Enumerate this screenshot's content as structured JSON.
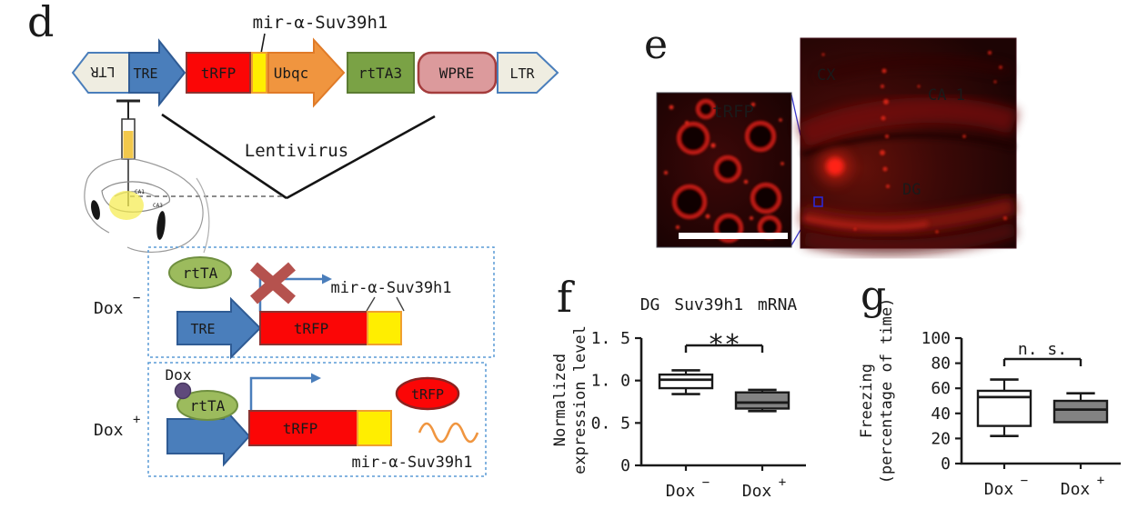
{
  "figure": {
    "colors": {
      "construct_blue": "#4a7ebb",
      "construct_blue_dark": "#2f5b94",
      "construct_red": "#fb0606",
      "construct_yellow": "#ffee00",
      "construct_orange": "#f0953f",
      "construct_green": "#7aa245",
      "construct_pink": "#dc9a9c",
      "ltr_fill": "#efede1",
      "rtta_green": "#9cbb5d",
      "cross_red": "#b5524e",
      "dox_purple": "#5f4a7b",
      "dashed_box_blue": "#5b9bd5",
      "box_gray": "#828282",
      "fluorescence_red": "#e02515"
    },
    "panel_d": {
      "label": "d",
      "construct": {
        "mir_label": "mir-α-Suv39h1",
        "ltr_left": "LTR",
        "tre": "TRE",
        "trfp": "tRFP",
        "ubqc": "Ubqc",
        "rtta3": "rtTA3",
        "wpre": "WPRE",
        "ltr_right": "LTR"
      },
      "lentivirus": "Lentivirus",
      "brain": {
        "ca1": "CA1",
        "ca3": "CA3"
      },
      "dox_minus": {
        "row_label": "Dox",
        "row_sup": "−",
        "rtta": "rtTA",
        "mir": "mir-α-Suv39h1",
        "tre": "TRE",
        "trfp": "tRFP"
      },
      "dox_plus": {
        "row_label": "Dox",
        "row_sup": "+",
        "dox": "Dox",
        "rtta": "rtTA",
        "trfp": "tRFP",
        "trfp_protein": "tRFP",
        "mir": "mir-α-Suv39h1"
      }
    },
    "panel_e": {
      "label": "e",
      "inset_label": "tRFP",
      "cx": "CX",
      "ca1": "CA 1",
      "dg": "DG"
    },
    "panel_f": {
      "label": "f"
    },
    "panel_g": {
      "label": "g"
    }
  },
  "chart_data": [
    {
      "id": "f",
      "type": "box",
      "title": "DG Suv39h1 mRNA",
      "ylabel": [
        "Normalized",
        "expression level"
      ],
      "xlabel": "",
      "ylim": [
        0,
        1.5
      ],
      "grid": false,
      "yticks": [
        {
          "value": 0,
          "label": "0"
        },
        {
          "value": 0.5,
          "label": "0. 5"
        },
        {
          "value": 1.0,
          "label": "1. 0"
        },
        {
          "value": 1.5,
          "label": "1. 5"
        }
      ],
      "categories": [
        {
          "label": "Dox",
          "sup": "−"
        },
        {
          "label": "Dox",
          "sup": "+"
        }
      ],
      "boxes": [
        {
          "whisker_low": 0.84,
          "q1": 0.91,
          "median": 1.01,
          "q3": 1.07,
          "whisker_high": 1.12,
          "fill": "#ffffff"
        },
        {
          "whisker_low": 0.64,
          "q1": 0.67,
          "median": 0.74,
          "q3": 0.86,
          "whisker_high": 0.89,
          "fill": "#828282"
        }
      ],
      "significance": "**"
    },
    {
      "id": "g",
      "type": "box",
      "title": "",
      "ylabel": [
        "Freezing",
        "(percentage of time)"
      ],
      "xlabel": "",
      "ylim": [
        0,
        100
      ],
      "grid": false,
      "yticks": [
        {
          "value": 0,
          "label": "0"
        },
        {
          "value": 20,
          "label": "20"
        },
        {
          "value": 40,
          "label": "40"
        },
        {
          "value": 60,
          "label": "60"
        },
        {
          "value": 80,
          "label": "80"
        },
        {
          "value": 100,
          "label": "100"
        }
      ],
      "categories": [
        {
          "label": "Dox",
          "sup": "−"
        },
        {
          "label": "Dox",
          "sup": "+"
        }
      ],
      "boxes": [
        {
          "whisker_low": 22,
          "q1": 30,
          "median": 53,
          "q3": 58,
          "whisker_high": 67,
          "fill": "#ffffff"
        },
        {
          "whisker_low": 33,
          "q1": 33,
          "median": 43,
          "q3": 50,
          "whisker_high": 56,
          "fill": "#828282"
        }
      ],
      "significance": "n. s."
    }
  ]
}
